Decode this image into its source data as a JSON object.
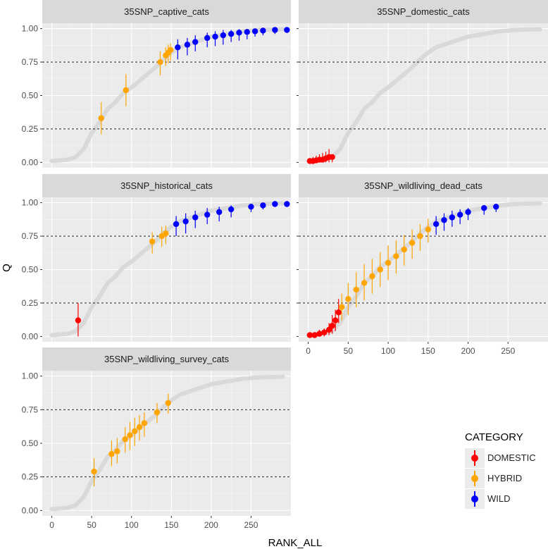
{
  "chart_data": {
    "type": "scatter",
    "title": "",
    "xlabel": "RANK_ALL",
    "ylabel": "Q",
    "xlim": [
      -12,
      300
    ],
    "ylim": [
      -0.04,
      1.04
    ],
    "x_ticks": [
      0,
      50,
      100,
      150,
      200,
      250
    ],
    "y_ticks": [
      0,
      0.25,
      0.5,
      0.75,
      1.0
    ],
    "x_tick_labels": [
      "0",
      "50",
      "100",
      "150",
      "200",
      "250"
    ],
    "y_tick_labels": [
      "0.00",
      "0.25",
      "0.50",
      "0.75",
      "1.00"
    ],
    "reference_lines": [
      0.25,
      0.75
    ],
    "background_curve": {
      "color": "#d9d9d9",
      "points": [
        [
          0,
          0.01
        ],
        [
          20,
          0.02
        ],
        [
          30,
          0.04
        ],
        [
          40,
          0.1
        ],
        [
          50,
          0.22
        ],
        [
          60,
          0.3
        ],
        [
          70,
          0.4
        ],
        [
          80,
          0.45
        ],
        [
          90,
          0.52
        ],
        [
          100,
          0.56
        ],
        [
          110,
          0.61
        ],
        [
          120,
          0.66
        ],
        [
          130,
          0.71
        ],
        [
          140,
          0.77
        ],
        [
          150,
          0.82
        ],
        [
          160,
          0.86
        ],
        [
          170,
          0.88
        ],
        [
          180,
          0.9
        ],
        [
          190,
          0.92
        ],
        [
          200,
          0.94
        ],
        [
          220,
          0.96
        ],
        [
          240,
          0.98
        ],
        [
          260,
          0.99
        ],
        [
          290,
          0.995
        ]
      ]
    },
    "panels": [
      {
        "name": "35SNP_captive_cats",
        "series": [
          {
            "category": "HYBRID",
            "points": [
              [
                62,
                0.33,
                0.21,
                0.45
              ],
              [
                93,
                0.54,
                0.42,
                0.66
              ],
              [
                136,
                0.75,
                0.65,
                0.83
              ],
              [
                143,
                0.8,
                0.72,
                0.86
              ],
              [
                146,
                0.82,
                0.74,
                0.88
              ],
              [
                149,
                0.84,
                0.76,
                0.89
              ]
            ]
          },
          {
            "category": "WILD",
            "points": [
              [
                158,
                0.86,
                0.77,
                0.92
              ],
              [
                170,
                0.88,
                0.8,
                0.93
              ],
              [
                180,
                0.9,
                0.83,
                0.95
              ],
              [
                195,
                0.93,
                0.86,
                0.97
              ],
              [
                205,
                0.94,
                0.87,
                0.98
              ],
              [
                215,
                0.95,
                0.88,
                0.99
              ],
              [
                225,
                0.96,
                0.9,
                0.99
              ],
              [
                235,
                0.97,
                0.91,
                0.995
              ],
              [
                245,
                0.975,
                0.92,
                0.995
              ],
              [
                255,
                0.98,
                0.94,
                0.995
              ],
              [
                265,
                0.985,
                0.95,
                0.998
              ],
              [
                280,
                0.99,
                0.96,
                0.999
              ],
              [
                295,
                0.99,
                0.97,
                0.999
              ]
            ]
          }
        ]
      },
      {
        "name": "35SNP_domestic_cats",
        "series": [
          {
            "category": "DOMESTIC",
            "points": [
              [
                2,
                0.01,
                0.0,
                0.03
              ],
              [
                6,
                0.01,
                0.0,
                0.04
              ],
              [
                10,
                0.015,
                0.0,
                0.05
              ],
              [
                14,
                0.02,
                0.0,
                0.06
              ],
              [
                18,
                0.02,
                0.0,
                0.07
              ],
              [
                22,
                0.03,
                0.0,
                0.08
              ],
              [
                26,
                0.04,
                0.0,
                0.1
              ],
              [
                30,
                0.04,
                0.0,
                0.06
              ]
            ]
          }
        ]
      },
      {
        "name": "35SNP_historical_cats",
        "series": [
          {
            "category": "DOMESTIC",
            "points": [
              [
                33,
                0.12,
                0.0,
                0.25
              ]
            ]
          },
          {
            "category": "HYBRID",
            "points": [
              [
                126,
                0.71,
                0.62,
                0.78
              ],
              [
                138,
                0.75,
                0.67,
                0.82
              ],
              [
                143,
                0.77,
                0.69,
                0.83
              ]
            ]
          },
          {
            "category": "WILD",
            "points": [
              [
                156,
                0.84,
                0.75,
                0.9
              ],
              [
                168,
                0.86,
                0.77,
                0.92
              ],
              [
                180,
                0.89,
                0.81,
                0.94
              ],
              [
                195,
                0.91,
                0.84,
                0.96
              ],
              [
                210,
                0.93,
                0.86,
                0.97
              ],
              [
                225,
                0.95,
                0.89,
                0.98
              ],
              [
                250,
                0.97,
                0.93,
                0.99
              ],
              [
                265,
                0.98,
                0.95,
                0.995
              ],
              [
                280,
                0.99,
                0.97,
                0.999
              ],
              [
                295,
                0.99,
                0.97,
                0.999
              ]
            ]
          }
        ]
      },
      {
        "name": "35SNP_wildliving_dead_cats",
        "series": [
          {
            "category": "DOMESTIC",
            "points": [
              [
                2,
                0.01,
                0.0,
                0.03
              ],
              [
                8,
                0.01,
                0.0,
                0.03
              ],
              [
                14,
                0.02,
                0.0,
                0.05
              ],
              [
                20,
                0.03,
                0.0,
                0.06
              ],
              [
                26,
                0.05,
                0.01,
                0.1
              ],
              [
                30,
                0.08,
                0.02,
                0.16
              ],
              [
                34,
                0.12,
                0.04,
                0.2
              ],
              [
                38,
                0.18,
                0.1,
                0.28
              ]
            ]
          },
          {
            "category": "HYBRID",
            "points": [
              [
                42,
                0.22,
                0.12,
                0.32
              ],
              [
                50,
                0.28,
                0.16,
                0.4
              ],
              [
                60,
                0.35,
                0.22,
                0.48
              ],
              [
                70,
                0.4,
                0.27,
                0.54
              ],
              [
                80,
                0.45,
                0.32,
                0.58
              ],
              [
                90,
                0.5,
                0.37,
                0.63
              ],
              [
                100,
                0.55,
                0.42,
                0.68
              ],
              [
                110,
                0.6,
                0.47,
                0.72
              ],
              [
                120,
                0.65,
                0.53,
                0.76
              ],
              [
                130,
                0.7,
                0.58,
                0.8
              ],
              [
                140,
                0.75,
                0.64,
                0.84
              ],
              [
                150,
                0.8,
                0.7,
                0.88
              ]
            ]
          },
          {
            "category": "WILD",
            "points": [
              [
                160,
                0.84,
                0.76,
                0.9
              ],
              [
                170,
                0.87,
                0.79,
                0.92
              ],
              [
                180,
                0.89,
                0.82,
                0.94
              ],
              [
                190,
                0.91,
                0.84,
                0.95
              ],
              [
                200,
                0.93,
                0.87,
                0.96
              ],
              [
                220,
                0.96,
                0.91,
                0.98
              ],
              [
                235,
                0.97,
                0.93,
                0.99
              ]
            ]
          }
        ]
      },
      {
        "name": "35SNP_wildliving_survey_cats",
        "series": [
          {
            "category": "HYBRID",
            "points": [
              [
                53,
                0.29,
                0.18,
                0.39
              ],
              [
                75,
                0.42,
                0.33,
                0.52
              ],
              [
                82,
                0.44,
                0.35,
                0.54
              ],
              [
                92,
                0.53,
                0.43,
                0.62
              ],
              [
                98,
                0.56,
                0.45,
                0.66
              ],
              [
                104,
                0.59,
                0.48,
                0.69
              ],
              [
                110,
                0.62,
                0.52,
                0.71
              ],
              [
                116,
                0.65,
                0.55,
                0.73
              ],
              [
                132,
                0.73,
                0.65,
                0.8
              ],
              [
                146,
                0.8,
                0.72,
                0.87
              ]
            ]
          }
        ]
      }
    ],
    "legend": {
      "title": "CATEGORY",
      "position": "right",
      "items": [
        {
          "label": "DOMESTIC",
          "color": "#ff0000"
        },
        {
          "label": "HYBRID",
          "color": "#ffa500"
        },
        {
          "label": "WILD",
          "color": "#0000ff"
        }
      ]
    }
  }
}
